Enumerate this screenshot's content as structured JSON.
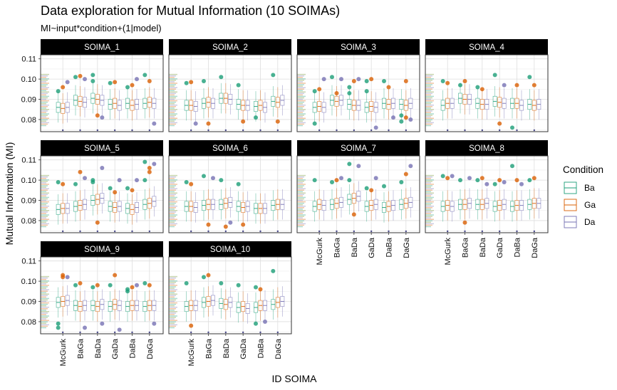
{
  "chart_data": {
    "type": "boxplot",
    "title": "Data exploration for Mutual Information (10 SOIMAs)",
    "subtitle": "MI~input*condition+(1|model)",
    "xlabel": "ID SOIMA",
    "ylabel": "Mutual Information (MI)",
    "ylim": [
      0.074,
      0.112
    ],
    "yticks": [
      0.08,
      0.09,
      0.1,
      0.11
    ],
    "ytick_labels": [
      "0.08",
      "0.09",
      "0.10",
      "0.11"
    ],
    "categories": [
      "McGurk",
      "BaGa",
      "BaDa",
      "GaDa",
      "DaBa",
      "DaGa"
    ],
    "legend": {
      "title": "Condition",
      "items": [
        {
          "label": "Ba",
          "color": "#1b9e77"
        },
        {
          "label": "Ga",
          "color": "#d95f02"
        },
        {
          "label": "Da",
          "color": "#7570b3"
        }
      ]
    },
    "panels": [
      {
        "name": "SOIMA_1",
        "medians": [
          [
            0.086,
            0.0855,
            0.086
          ],
          [
            0.0895,
            0.089,
            0.0885
          ],
          [
            0.0905,
            0.09,
            0.0895
          ],
          [
            0.0875,
            0.088,
            0.087
          ],
          [
            0.088,
            0.087,
            0.0875
          ],
          [
            0.088,
            0.0885,
            0.088
          ]
        ],
        "outliers": [
          [
            0.094,
            0.096,
            0.0985
          ],
          [
            0.101,
            0.1015,
            0.1
          ],
          [
            0.102,
            0.082,
            0.081,
            0.099
          ],
          [
            0.098,
            0.0985
          ],
          [
            0.096,
            0.097,
            0.1
          ],
          [
            0.102,
            0.099,
            0.078
          ]
        ]
      },
      {
        "name": "SOIMA_2",
        "medians": [
          [
            0.087,
            0.087,
            0.0865
          ],
          [
            0.088,
            0.0885,
            0.088
          ],
          [
            0.0905,
            0.0905,
            0.09
          ],
          [
            0.0875,
            0.087,
            0.087
          ],
          [
            0.0865,
            0.087,
            0.086
          ],
          [
            0.089,
            0.0885,
            0.0895
          ]
        ],
        "outliers": [
          [
            0.098,
            0.0985,
            0.078
          ],
          [
            0.099,
            0.078
          ],
          [
            0.101
          ],
          [
            0.097,
            0.079
          ],
          [
            0.081
          ],
          [
            0.102,
            0.079
          ]
        ]
      },
      {
        "name": "SOIMA_3",
        "medians": [
          [
            0.086,
            0.0865,
            0.086
          ],
          [
            0.0895,
            0.089,
            0.0895
          ],
          [
            0.0875,
            0.087,
            0.087
          ],
          [
            0.086,
            0.0865,
            0.086
          ],
          [
            0.088,
            0.0875,
            0.088
          ],
          [
            0.0875,
            0.087,
            0.088
          ]
        ],
        "outliers": [
          [
            0.094,
            0.095,
            0.1,
            0.078
          ],
          [
            0.101,
            0.093,
            0.1
          ],
          [
            0.096,
            0.099,
            0.1,
            0.093
          ],
          [
            0.094,
            0.1,
            0.076,
            0.099
          ],
          [
            0.099,
            0.096,
            0.081
          ],
          [
            0.082,
            0.081,
            0.08,
            0.079,
            0.099
          ]
        ]
      },
      {
        "name": "SOIMA_4",
        "medians": [
          [
            0.087,
            0.088,
            0.088
          ],
          [
            0.0905,
            0.09,
            0.09
          ],
          [
            0.088,
            0.0875,
            0.0875
          ],
          [
            0.089,
            0.0885,
            0.088
          ],
          [
            0.088,
            0.088,
            0.087
          ],
          [
            0.0875,
            0.087,
            0.0875
          ]
        ],
        "outliers": [
          [
            0.099,
            0.098
          ],
          [
            0.097,
            0.099
          ],
          [
            0.096,
            0.095
          ],
          [
            0.102,
            0.078,
            0.097
          ],
          [
            0.076,
            0.097
          ],
          [
            0.101,
            0.097
          ]
        ]
      },
      {
        "name": "SOIMA_5",
        "medians": [
          [
            0.0855,
            0.086,
            0.086
          ],
          [
            0.087,
            0.0875,
            0.088
          ],
          [
            0.09,
            0.0905,
            0.091
          ],
          [
            0.087,
            0.0865,
            0.087
          ],
          [
            0.086,
            0.0855,
            0.0865
          ],
          [
            0.088,
            0.0885,
            0.0895
          ]
        ],
        "outliers": [
          [
            0.099,
            0.098
          ],
          [
            0.098,
            0.104,
            0.101
          ],
          [
            0.1,
            0.079,
            0.106,
            0.099
          ],
          [
            0.096,
            0.094,
            0.1
          ],
          [
            0.096,
            0.095,
            0.1
          ],
          [
            0.1,
            0.104,
            0.108,
            0.109,
            0.106
          ]
        ]
      },
      {
        "name": "SOIMA_6",
        "medians": [
          [
            0.087,
            0.087,
            0.0865
          ],
          [
            0.0875,
            0.088,
            0.088
          ],
          [
            0.088,
            0.0885,
            0.089
          ],
          [
            0.087,
            0.0865,
            0.087
          ],
          [
            0.086,
            0.086,
            0.086
          ],
          [
            0.0875,
            0.088,
            0.088
          ]
        ],
        "outliers": [
          [
            0.099,
            0.098
          ],
          [
            0.102,
            0.078,
            0.101
          ],
          [
            0.1,
            0.077,
            0.079
          ],
          [
            0.098,
            0.078
          ],
          [],
          []
        ]
      },
      {
        "name": "SOIMA_7",
        "medians": [
          [
            0.087,
            0.088,
            0.0875
          ],
          [
            0.088,
            0.0885,
            0.089
          ],
          [
            0.0905,
            0.091,
            0.092
          ],
          [
            0.087,
            0.0875,
            0.088
          ],
          [
            0.0865,
            0.087,
            0.0875
          ],
          [
            0.088,
            0.0885,
            0.089
          ]
        ],
        "outliers": [
          [
            0.1
          ],
          [
            0.099,
            0.1,
            0.101
          ],
          [
            0.1,
            0.083,
            0.107,
            0.108
          ],
          [
            0.096,
            0.095,
            0.101
          ],
          [
            0.097
          ],
          [
            0.099,
            0.103,
            0.107
          ]
        ]
      },
      {
        "name": "SOIMA_8",
        "medians": [
          [
            0.087,
            0.0875,
            0.087
          ],
          [
            0.088,
            0.088,
            0.0885
          ],
          [
            0.088,
            0.088,
            0.0885
          ],
          [
            0.087,
            0.0875,
            0.088
          ],
          [
            0.087,
            0.0875,
            0.0875
          ],
          [
            0.088,
            0.0885,
            0.0885
          ]
        ],
        "outliers": [
          [
            0.102,
            0.101,
            0.102
          ],
          [
            0.1,
            0.079,
            0.101
          ],
          [
            0.1,
            0.101,
            0.098
          ],
          [
            0.098,
            0.1,
            0.099
          ],
          [
            0.107,
            0.1,
            0.098
          ],
          [
            0.1,
            0.101
          ]
        ]
      },
      {
        "name": "SOIMA_9",
        "medians": [
          [
            0.0895,
            0.09,
            0.0905
          ],
          [
            0.088,
            0.0875,
            0.088
          ],
          [
            0.088,
            0.0875,
            0.0885
          ],
          [
            0.0875,
            0.0885,
            0.088
          ],
          [
            0.0875,
            0.088,
            0.088
          ],
          [
            0.0875,
            0.088,
            0.088
          ]
        ],
        "outliers": [
          [
            0.077,
            0.103,
            0.102,
            0.079,
            0.102
          ],
          [
            0.098,
            0.099,
            0.077
          ],
          [
            0.097,
            0.098,
            0.079
          ],
          [
            0.098,
            0.103,
            0.076
          ],
          [
            0.096,
            0.097,
            0.098,
            0.095
          ],
          [
            0.099,
            0.098,
            0.079
          ]
        ]
      },
      {
        "name": "SOIMA_10",
        "medians": [
          [
            0.0875,
            0.088,
            0.088
          ],
          [
            0.0895,
            0.09,
            0.0905
          ],
          [
            0.089,
            0.0885,
            0.0895
          ],
          [
            0.087,
            0.0875,
            0.0865
          ],
          [
            0.087,
            0.088,
            0.088
          ],
          [
            0.0885,
            0.0895,
            0.09
          ]
        ],
        "outliers": [
          [
            0.099,
            0.078
          ],
          [
            0.102,
            0.103
          ],
          [
            0.099
          ],
          [
            0.098
          ],
          [
            0.097,
            0.096,
            0.08,
            0.079
          ],
          [
            0.105
          ]
        ]
      }
    ]
  }
}
